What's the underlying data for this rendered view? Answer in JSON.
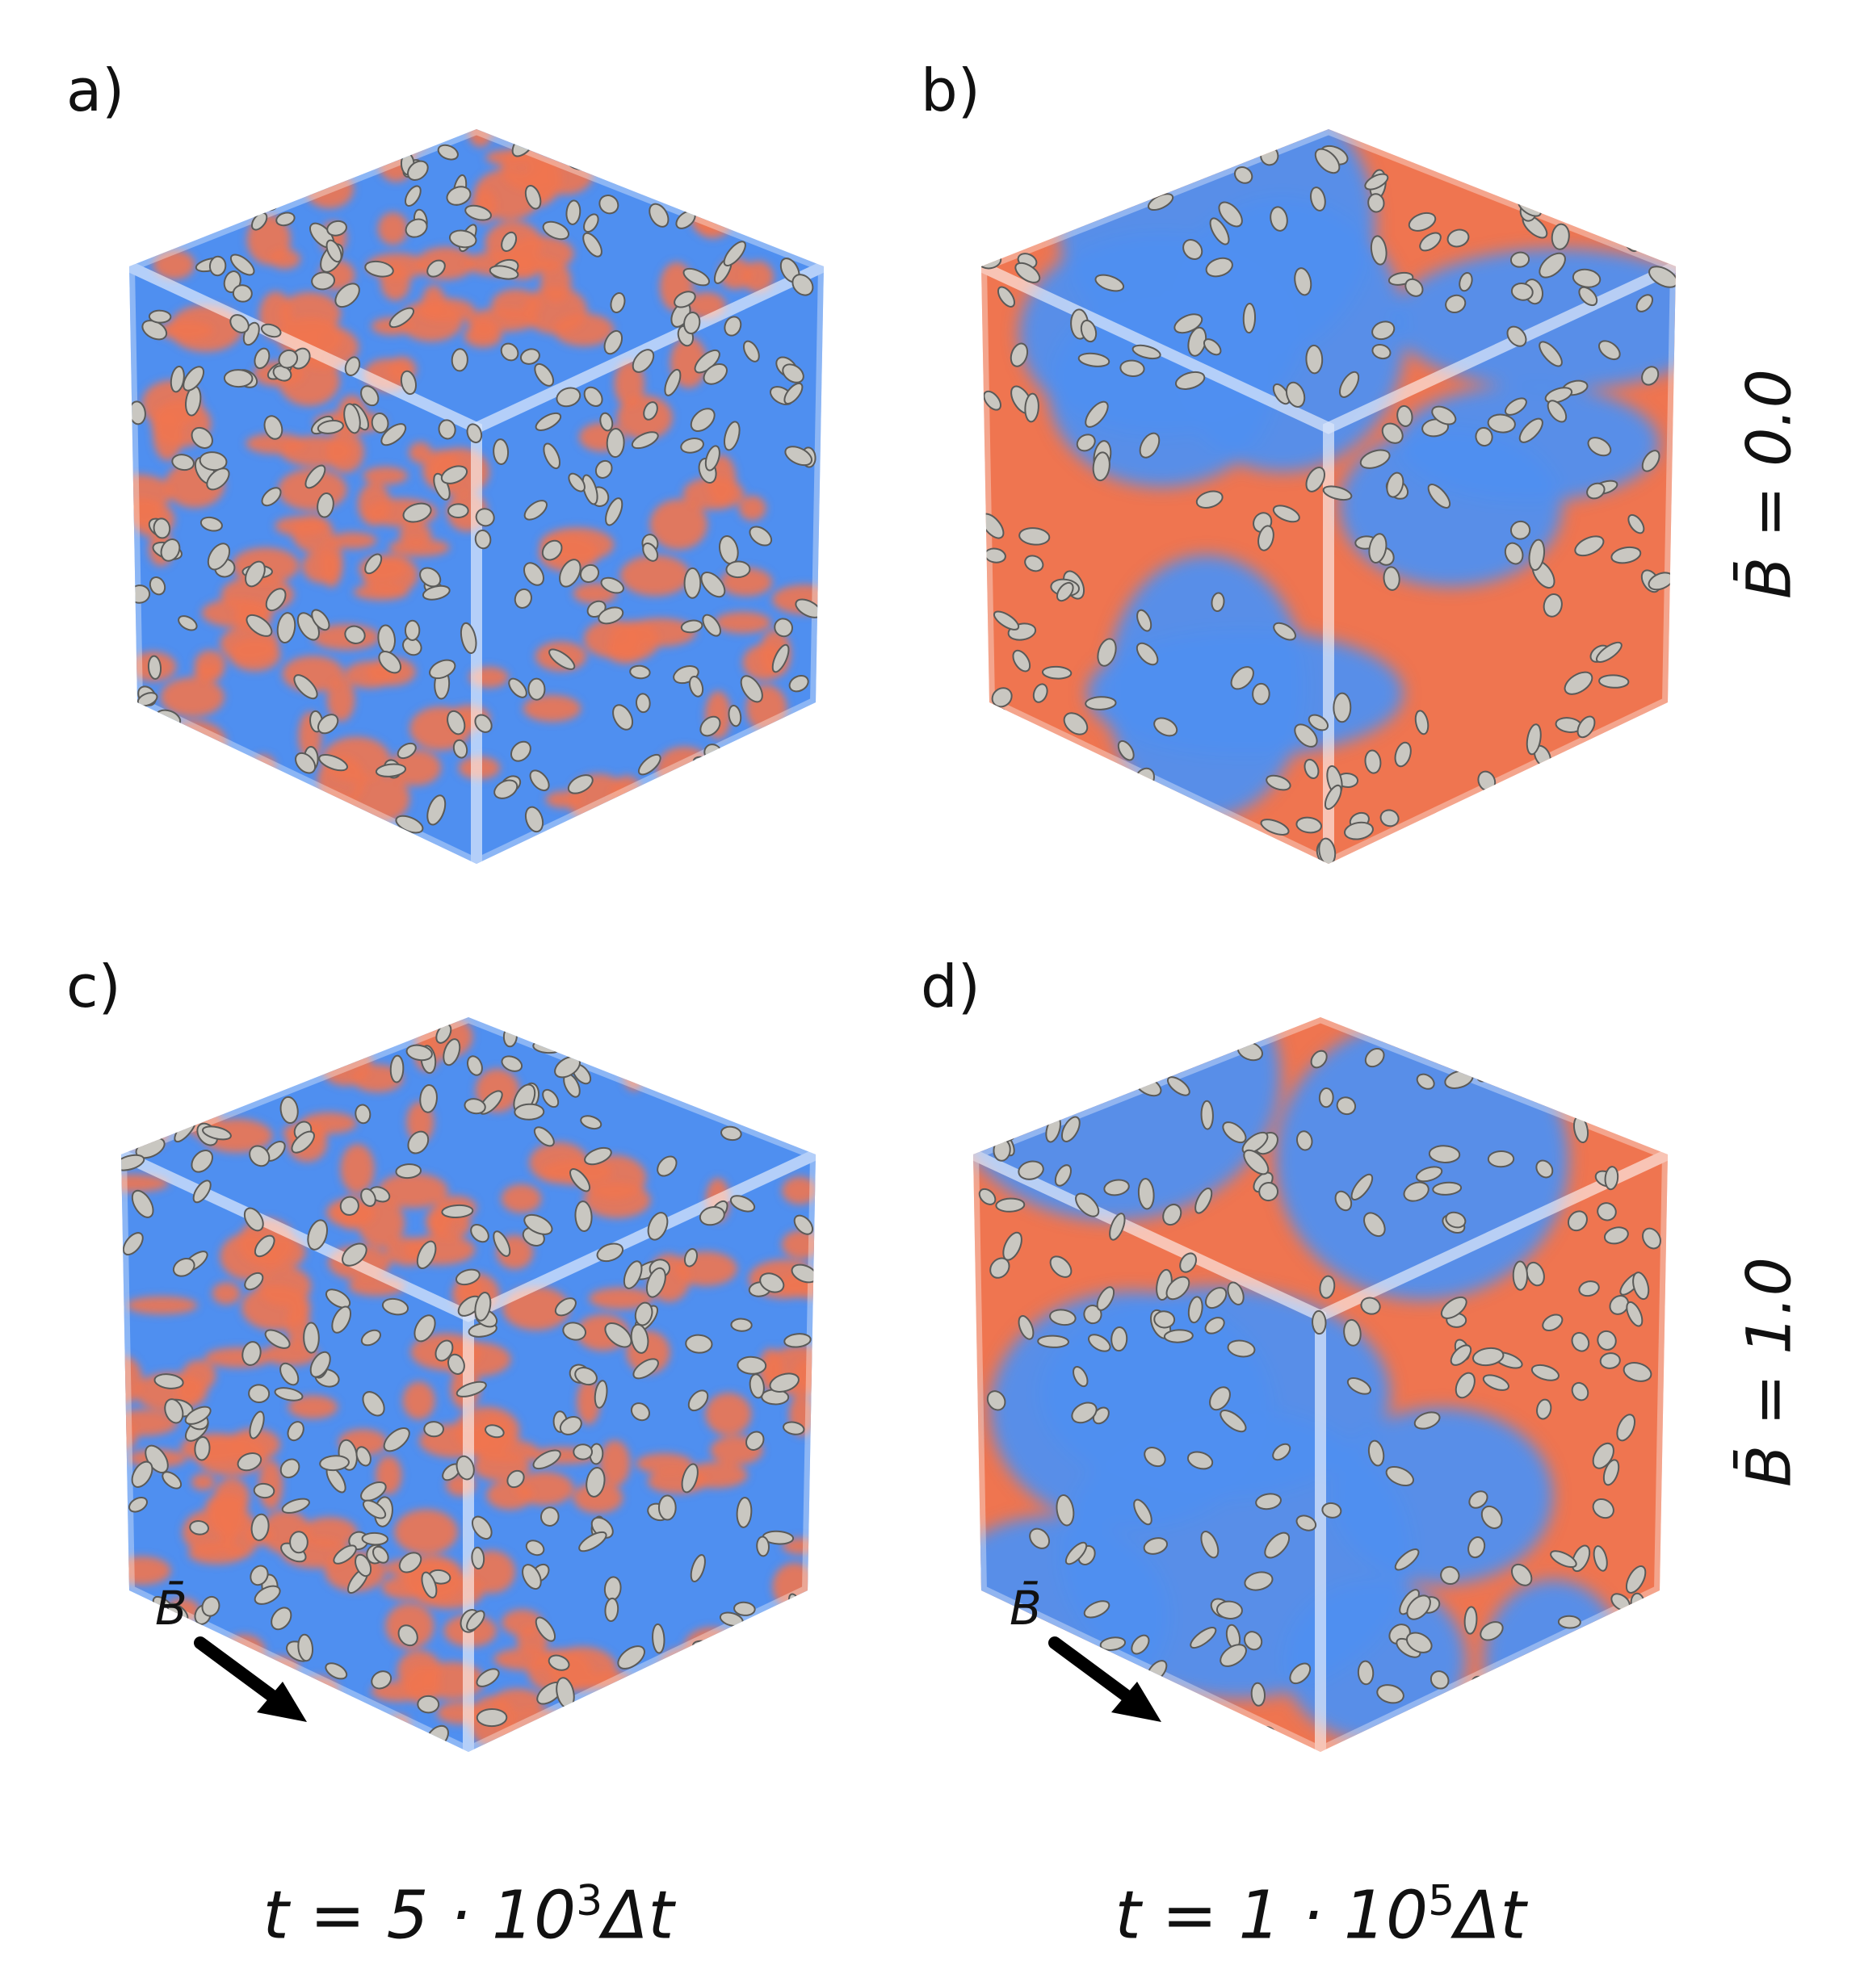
{
  "panels": [
    {
      "id": "a",
      "label": "a)",
      "pattern": "fine",
      "base_color": "#ef7550",
      "second_color": "#4f8ff0"
    },
    {
      "id": "b",
      "label": "b)",
      "pattern": "coarse",
      "base_color": "#ef7550",
      "second_color": "#4f8ff0"
    },
    {
      "id": "c",
      "label": "c)",
      "pattern": "fine",
      "base_color": "#ef7550",
      "second_color": "#4f8ff0"
    },
    {
      "id": "d",
      "label": "d)",
      "pattern": "coarse",
      "base_color": "#ef7550",
      "second_color": "#4f8ff0"
    }
  ],
  "row_labels": [
    "B̄ = 0.0",
    "B̄ = 1.0"
  ],
  "column_labels": [
    {
      "pre": "t = 5 · 10",
      "exp": "3",
      "post": "Δt"
    },
    {
      "pre": "t = 1 · 10",
      "exp": "5",
      "post": "Δt"
    }
  ],
  "field_label": "B̄",
  "particle_color": "#c9c7c1",
  "arrow_icon": "field-direction-arrow-icon"
}
